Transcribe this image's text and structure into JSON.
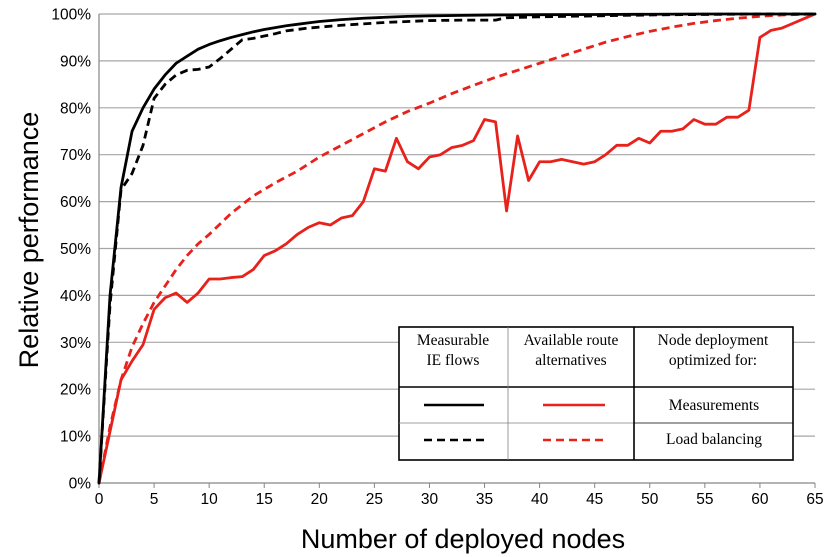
{
  "chart_data": {
    "type": "line",
    "xlabel": "Number of deployed nodes",
    "ylabel": "Relative performance",
    "xlim": [
      0,
      65
    ],
    "ylim": [
      0,
      100
    ],
    "xticks": [
      "0",
      "5",
      "10",
      "15",
      "20",
      "25",
      "30",
      "35",
      "40",
      "45",
      "50",
      "55",
      "60",
      "65"
    ],
    "yticks": [
      "0%",
      "10%",
      "20%",
      "30%",
      "40%",
      "50%",
      "60%",
      "70%",
      "80%",
      "90%",
      "100%"
    ],
    "grid": "horizontal",
    "legend": {
      "position": "bottom-right",
      "col_headers": [
        "Measurable IE flows",
        "Available route alternatives",
        "Node deployment optimized for:"
      ],
      "row_labels": [
        "Measurements",
        "Load balancing"
      ]
    },
    "series": [
      {
        "name": "IE flows - Measurements",
        "color": "#000000",
        "dash": "solid",
        "x": [
          0,
          1,
          2,
          3,
          4,
          5,
          6,
          7,
          8,
          9,
          10,
          11,
          12,
          13,
          14,
          15,
          16,
          17,
          18,
          19,
          20,
          22,
          24,
          26,
          28,
          30,
          33,
          36,
          40,
          45,
          50,
          55,
          60,
          65
        ],
        "y": [
          0,
          40,
          63,
          75,
          80,
          84,
          87,
          89.5,
          91,
          92.5,
          93.5,
          94.3,
          95,
          95.6,
          96.2,
          96.7,
          97.1,
          97.5,
          97.8,
          98.1,
          98.4,
          98.8,
          99.1,
          99.3,
          99.5,
          99.6,
          99.7,
          99.8,
          99.85,
          99.9,
          99.95,
          100,
          100,
          100
        ]
      },
      {
        "name": "IE flows - Load balancing",
        "color": "#000000",
        "dash": "dashed",
        "x": [
          0,
          1,
          2,
          3,
          4,
          5,
          6,
          7,
          8,
          9,
          10,
          11,
          12,
          13,
          14,
          15,
          16,
          17,
          18,
          19,
          20,
          22,
          24,
          26,
          28,
          30,
          33,
          36,
          37,
          40,
          45,
          50,
          55,
          60,
          65
        ],
        "y": [
          0,
          38,
          62.5,
          66,
          72,
          82,
          85,
          87,
          88,
          88.2,
          88.7,
          90.5,
          92.5,
          94.5,
          94.8,
          95.3,
          95.8,
          96.4,
          96.7,
          97,
          97.2,
          97.6,
          97.9,
          98.2,
          98.4,
          98.6,
          98.7,
          98.7,
          99.2,
          99.4,
          99.6,
          99.8,
          99.9,
          100,
          100
        ]
      },
      {
        "name": "Route alternatives - Measurements",
        "color": "#e8211b",
        "dash": "solid",
        "x": [
          0,
          1,
          2,
          3,
          4,
          5,
          6,
          7,
          8,
          9,
          10,
          11,
          12,
          13,
          14,
          15,
          16,
          17,
          18,
          19,
          20,
          21,
          22,
          23,
          24,
          25,
          26,
          27,
          28,
          29,
          30,
          31,
          32,
          33,
          34,
          35,
          36,
          37,
          38,
          39,
          40,
          41,
          42,
          43,
          44,
          45,
          46,
          47,
          48,
          49,
          50,
          51,
          52,
          53,
          54,
          55,
          56,
          57,
          58,
          59,
          60,
          61,
          62,
          63,
          64,
          65
        ],
        "y": [
          0,
          11,
          22,
          26,
          29.5,
          37,
          39.5,
          40.5,
          38.5,
          40.5,
          43.5,
          43.5,
          43.8,
          44,
          45.5,
          48.5,
          49.5,
          51,
          53,
          54.5,
          55.5,
          55,
          56.5,
          57,
          60,
          67,
          66.5,
          73.5,
          68.5,
          67,
          69.5,
          70,
          71.5,
          72,
          73,
          77.5,
          77,
          58,
          74,
          64.5,
          68.5,
          68.5,
          69,
          68.5,
          68,
          68.5,
          70,
          72,
          72,
          73.5,
          72.5,
          75,
          75,
          75.5,
          77.5,
          76.5,
          76.5,
          78,
          78,
          79.5,
          95,
          96.5,
          97,
          98,
          99,
          100
        ]
      },
      {
        "name": "Route alternatives - Load balancing",
        "color": "#e8211b",
        "dash": "dashed",
        "x": [
          0,
          1,
          2,
          3,
          4,
          5,
          6,
          7,
          8,
          9,
          10,
          12,
          14,
          16,
          18,
          20,
          22,
          24,
          26,
          28,
          30,
          32,
          34,
          36,
          38,
          40,
          42,
          44,
          46,
          48,
          50,
          52,
          54,
          56,
          58,
          60,
          62,
          65
        ],
        "y": [
          0,
          12,
          22,
          29,
          34,
          38.5,
          42,
          45.5,
          48.5,
          51,
          53,
          57.5,
          61.2,
          64,
          66.5,
          69.5,
          72,
          74.5,
          77,
          79.2,
          81,
          83,
          84.8,
          86.5,
          88,
          89.5,
          91,
          92.5,
          94,
          95.2,
          96.3,
          97.2,
          98,
          98.6,
          99.1,
          99.5,
          99.8,
          100
        ]
      }
    ]
  }
}
